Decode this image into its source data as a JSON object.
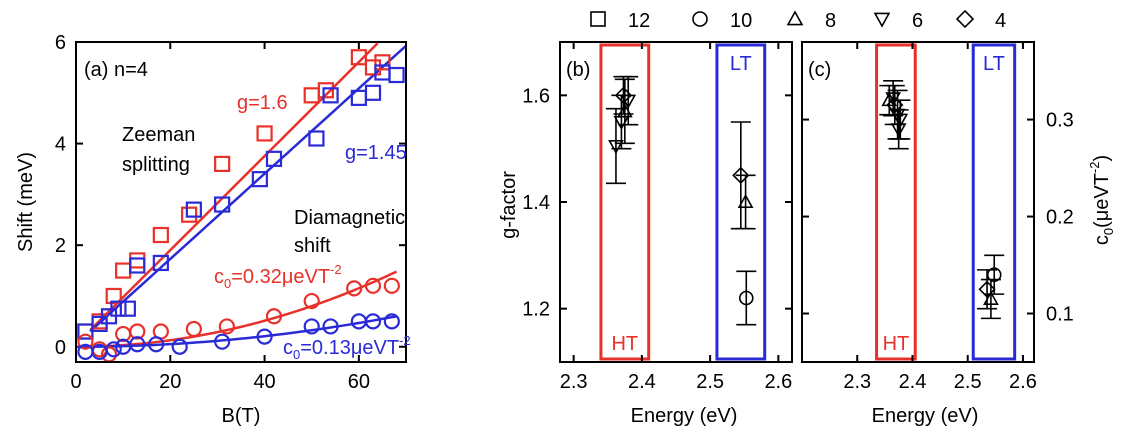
{
  "legend": {
    "items": [
      {
        "symbol": "square",
        "label": "12"
      },
      {
        "symbol": "circle",
        "label": "10"
      },
      {
        "symbol": "triangle-up",
        "label": "8"
      },
      {
        "symbol": "triangle-down",
        "label": "6"
      },
      {
        "symbol": "diamond",
        "label": "4"
      }
    ]
  },
  "colors": {
    "red": "#e8312a",
    "blue": "#2a2ad6",
    "black": "#000000"
  },
  "chart_data": [
    {
      "type": "scatter",
      "panel_label": "(a) n=4",
      "xlabel": "B(T)",
      "ylabel": "Shift (meV)",
      "xlim": [
        0,
        70
      ],
      "ylim": [
        -0.3,
        6
      ],
      "xticks": [
        0,
        20,
        40,
        60
      ],
      "yticks": [
        0,
        2,
        4,
        6
      ],
      "annotations": {
        "g_red": "g=1.6",
        "g_blue": "g=1.45",
        "zeeman1": "Zeeman",
        "zeeman2": "splitting",
        "diamag1": "Diamagnetic",
        "diamag2": "shift",
        "c0_red_pre": "c",
        "c0_red_sub": "0",
        "c0_red_val": "=0.32μeVT",
        "c0_red_sup": "-2",
        "c0_blue_pre": "c",
        "c0_blue_sub": "0",
        "c0_blue_val": "=0.13μeVT",
        "c0_blue_sup": "-2"
      },
      "series": [
        {
          "color": "red",
          "marker": "square",
          "x": [
            2,
            5,
            8,
            10,
            13,
            18,
            24,
            31,
            40,
            50,
            53,
            60,
            63,
            65
          ],
          "y": [
            0.3,
            0.5,
            1.0,
            1.5,
            1.7,
            2.2,
            2.6,
            3.6,
            4.2,
            4.95,
            5.05,
            5.7,
            5.5,
            5.6
          ]
        },
        {
          "color": "blue",
          "marker": "square",
          "x": [
            2,
            5,
            7,
            9,
            11,
            13,
            18,
            25,
            31,
            39,
            42,
            51,
            54,
            60,
            63,
            65,
            68
          ],
          "y": [
            0.3,
            0.45,
            0.6,
            0.75,
            0.75,
            1.6,
            1.65,
            2.7,
            2.8,
            3.3,
            3.7,
            4.1,
            4.95,
            4.9,
            5.0,
            5.4,
            5.35
          ]
        },
        {
          "color": "red",
          "marker": "circle",
          "x": [
            2,
            5,
            7,
            10,
            13,
            18,
            25,
            32,
            42,
            50,
            59,
            63,
            67
          ],
          "y": [
            0.1,
            -0.05,
            -0.15,
            0.25,
            0.3,
            0.3,
            0.35,
            0.4,
            0.6,
            0.9,
            1.15,
            1.2,
            1.2
          ]
        },
        {
          "color": "blue",
          "marker": "circle",
          "x": [
            2,
            5,
            8,
            10,
            13,
            17,
            22,
            31,
            40,
            50,
            54,
            60,
            63,
            67
          ],
          "y": [
            -0.1,
            -0.1,
            -0.05,
            0.0,
            0.05,
            0.05,
            0.0,
            0.1,
            0.2,
            0.4,
            0.4,
            0.5,
            0.5,
            0.5
          ]
        }
      ],
      "fits": [
        {
          "color": "red",
          "kind": "zeeman",
          "g": 1.6,
          "offset": 0.05
        },
        {
          "color": "blue",
          "kind": "zeeman",
          "g": 1.45,
          "offset": 0.05
        },
        {
          "color": "red",
          "kind": "diamagnetic",
          "c0": 0.32
        },
        {
          "color": "blue",
          "kind": "diamagnetic",
          "c0": 0.13
        }
      ]
    },
    {
      "type": "scatter",
      "panel_label": "(b)",
      "xlabel": "Energy (eV)",
      "ylabel": "g-factor",
      "xlim": [
        2.28,
        2.62
      ],
      "ylim": [
        1.1,
        1.7
      ],
      "xticks": [
        2.3,
        2.4,
        2.5,
        2.6
      ],
      "yticks": [
        1.2,
        1.4,
        1.6
      ],
      "regions": [
        {
          "label": "HT",
          "color": "red",
          "x": [
            2.34,
            2.41
          ]
        },
        {
          "label": "LT",
          "color": "blue",
          "x": [
            2.51,
            2.58
          ]
        }
      ],
      "points": [
        {
          "marker": "triangle-up",
          "x": 2.375,
          "y": 1.57,
          "err": 0.06
        },
        {
          "marker": "triangle-down",
          "x": 2.362,
          "y": 1.505,
          "err": 0.07
        },
        {
          "marker": "diamond",
          "x": 2.373,
          "y": 1.6,
          "err": 0.035
        },
        {
          "marker": "triangle-down",
          "x": 2.38,
          "y": 1.59,
          "err": 0.045
        },
        {
          "marker": "triangle-down",
          "x": 2.37,
          "y": 1.55,
          "err": 0.05
        },
        {
          "marker": "diamond",
          "x": 2.545,
          "y": 1.45,
          "err": 0.1
        },
        {
          "marker": "triangle-up",
          "x": 2.552,
          "y": 1.4,
          "err": 0.05
        },
        {
          "marker": "circle",
          "x": 2.553,
          "y": 1.22,
          "err": 0.05
        }
      ]
    },
    {
      "type": "scatter",
      "panel_label": "(c)",
      "xlabel": "Energy (eV)",
      "ylabel_pre": "c",
      "ylabel_sub": "0",
      "ylabel_val": "(μeVT",
      "ylabel_sup": "-2",
      "ylabel_post": ")",
      "xlim": [
        2.2,
        2.62
      ],
      "ylim": [
        0.05,
        0.38
      ],
      "xticks": [
        2.3,
        2.4,
        2.5,
        2.6
      ],
      "yticks": [
        0.1,
        0.2,
        0.3
      ],
      "regions": [
        {
          "label": "HT",
          "color": "red",
          "x": [
            2.335,
            2.405
          ]
        },
        {
          "label": "LT",
          "color": "blue",
          "x": [
            2.51,
            2.585
          ]
        }
      ],
      "points": [
        {
          "marker": "triangle-up",
          "x": 2.358,
          "y": 0.32,
          "err": 0.015
        },
        {
          "marker": "diamond",
          "x": 2.368,
          "y": 0.315,
          "err": 0.02
        },
        {
          "marker": "triangle-down",
          "x": 2.365,
          "y": 0.322,
          "err": 0.018
        },
        {
          "marker": "triangle-down",
          "x": 2.373,
          "y": 0.305,
          "err": 0.025
        },
        {
          "marker": "triangle-down",
          "x": 2.378,
          "y": 0.3,
          "err": 0.02
        },
        {
          "marker": "triangle-down",
          "x": 2.375,
          "y": 0.29,
          "err": 0.02
        },
        {
          "marker": "circle",
          "x": 2.548,
          "y": 0.14,
          "err": 0.02
        },
        {
          "marker": "diamond",
          "x": 2.535,
          "y": 0.125,
          "err": 0.02
        },
        {
          "marker": "triangle-up",
          "x": 2.542,
          "y": 0.115,
          "err": 0.02
        }
      ]
    }
  ]
}
